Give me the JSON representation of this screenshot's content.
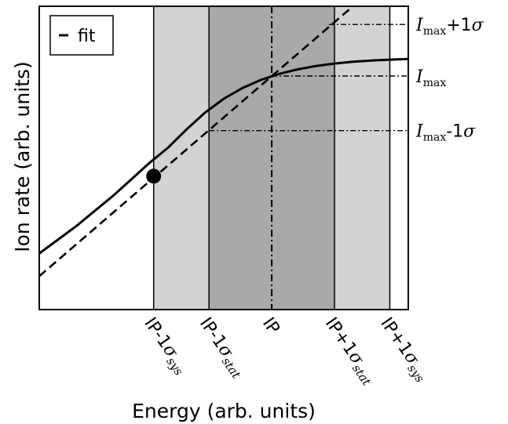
{
  "chart_data": {
    "type": "line",
    "xlabel": "Energy (arb. units)",
    "ylabel": "Ion rate (arb. units)",
    "xlim": [
      0,
      10
    ],
    "ylim": [
      0,
      10
    ],
    "grid": false,
    "legend": {
      "placement": "top-left",
      "entries": [
        "fit"
      ]
    },
    "bands": [
      {
        "x0": 3.1,
        "x1": 4.6,
        "color": "#d3d3d3"
      },
      {
        "x0": 4.6,
        "x1": 8.0,
        "color": "#a9a9a9"
      },
      {
        "x0": 8.0,
        "x1": 9.5,
        "color": "#d3d3d3"
      }
    ],
    "band_edges": [
      3.1,
      4.6,
      8.0,
      9.5
    ],
    "curve": {
      "x": [
        0,
        0.5,
        1,
        1.5,
        2,
        2.5,
        3,
        3.1,
        3.5,
        4,
        4.5,
        5,
        5.5,
        6,
        6.5,
        7,
        7.5,
        8,
        8.5,
        9,
        9.5,
        10
      ],
      "y": [
        1.85,
        2.3,
        2.75,
        3.25,
        3.75,
        4.3,
        4.85,
        4.4,
        5.35,
        5.95,
        6.5,
        6.95,
        7.3,
        7.57,
        7.77,
        7.92,
        8.03,
        8.11,
        8.17,
        8.21,
        8.24,
        8.26
      ],
      "style": "solid"
    },
    "fit": {
      "name": "fit",
      "x": [
        0,
        8.5
      ],
      "y": [
        1.1,
        10.0
      ],
      "style": "dashed"
    },
    "marker": {
      "x": 3.1,
      "y": 4.4
    },
    "ip_line": {
      "x": 6.3
    },
    "hlines": [
      {
        "y": 9.4,
        "x_start": 7.85
      },
      {
        "y": 7.7,
        "x_start": 6.3
      },
      {
        "y": 5.9,
        "x_start": 4.6
      }
    ],
    "x_ticks": [
      {
        "x": 3.1,
        "main": "IP-1",
        "sub": "sys"
      },
      {
        "x": 4.6,
        "main": "IP-1",
        "sub": "stat"
      },
      {
        "x": 6.3,
        "main": "IP",
        "sub": ""
      },
      {
        "x": 8.0,
        "main": "IP+1",
        "sub": "stat"
      },
      {
        "x": 9.5,
        "main": "IP+1",
        "sub": "sys"
      }
    ],
    "sigma": "σ",
    "right_annotations": [
      {
        "y": 9.4,
        "var": "I",
        "sub": "max",
        "suffix": "+1"
      },
      {
        "y": 7.7,
        "var": "I",
        "sub": "max",
        "suffix": ""
      },
      {
        "y": 5.9,
        "var": "I",
        "sub": "max",
        "suffix": "-1"
      }
    ]
  }
}
